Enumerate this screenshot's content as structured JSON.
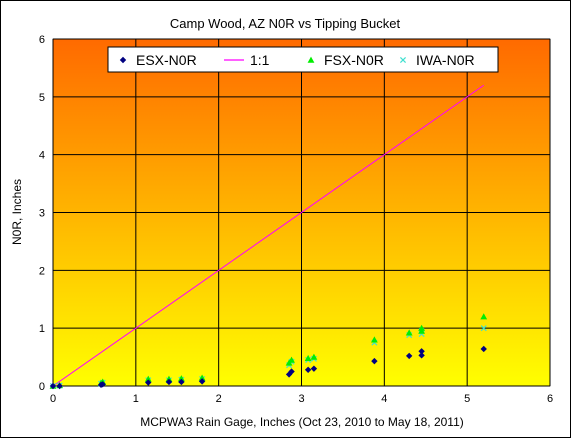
{
  "chart_data": {
    "type": "scatter",
    "title": "Camp Wood, AZ N0R  vs Tipping Bucket",
    "xlabel": "MCPWA3 Rain Gage, Inches (Oct 23, 2010 to May 18, 2011)",
    "ylabel": "N0R, Inches",
    "xlim": [
      0,
      6
    ],
    "ylim": [
      0,
      6
    ],
    "x_ticks": [
      "0",
      "1",
      "2",
      "3",
      "4",
      "5",
      "6"
    ],
    "y_ticks": [
      "0",
      "1",
      "2",
      "3",
      "4",
      "5",
      "6"
    ],
    "grid": true,
    "legend_position": "top-center",
    "background_gradient": [
      "#ff6a00",
      "#ffff00"
    ],
    "series": [
      {
        "name": "ESX-N0R",
        "marker": "diamond",
        "color": "#000080",
        "points": [
          [
            0.0,
            0.0
          ],
          [
            0.08,
            0.0
          ],
          [
            0.58,
            0.02
          ],
          [
            0.6,
            0.03
          ],
          [
            1.15,
            0.06
          ],
          [
            1.4,
            0.07
          ],
          [
            1.55,
            0.07
          ],
          [
            1.8,
            0.08
          ],
          [
            2.85,
            0.2
          ],
          [
            2.88,
            0.25
          ],
          [
            3.08,
            0.28
          ],
          [
            3.15,
            0.3
          ],
          [
            3.88,
            0.43
          ],
          [
            4.3,
            0.52
          ],
          [
            4.45,
            0.53
          ],
          [
            4.45,
            0.6
          ],
          [
            5.2,
            0.64
          ]
        ]
      },
      {
        "name": "1:1",
        "marker": "line",
        "color": "#ff00ff",
        "points": [
          [
            0,
            0
          ],
          [
            5.2,
            5.2
          ]
        ]
      },
      {
        "name": "FSX-N0R",
        "marker": "triangle",
        "color": "#00ee00",
        "points": [
          [
            0.0,
            0.0
          ],
          [
            0.08,
            0.01
          ],
          [
            0.58,
            0.05
          ],
          [
            0.6,
            0.07
          ],
          [
            1.15,
            0.12
          ],
          [
            1.4,
            0.12
          ],
          [
            1.55,
            0.13
          ],
          [
            1.8,
            0.14
          ],
          [
            2.85,
            0.4
          ],
          [
            2.88,
            0.45
          ],
          [
            3.08,
            0.48
          ],
          [
            3.15,
            0.5
          ],
          [
            3.88,
            0.8
          ],
          [
            4.3,
            0.92
          ],
          [
            4.45,
            0.95
          ],
          [
            4.45,
            1.0
          ],
          [
            5.2,
            1.2
          ]
        ]
      },
      {
        "name": "IWA-N0R",
        "marker": "x",
        "color": "#40e0d0",
        "points": [
          [
            0.0,
            0.0
          ],
          [
            0.08,
            0.01
          ],
          [
            0.58,
            0.04
          ],
          [
            0.6,
            0.06
          ],
          [
            1.15,
            0.1
          ],
          [
            1.4,
            0.1
          ],
          [
            1.55,
            0.11
          ],
          [
            1.8,
            0.12
          ],
          [
            2.85,
            0.36
          ],
          [
            2.88,
            0.42
          ],
          [
            3.08,
            0.45
          ],
          [
            3.15,
            0.47
          ],
          [
            3.88,
            0.75
          ],
          [
            4.3,
            0.88
          ],
          [
            4.45,
            0.9
          ],
          [
            4.45,
            0.95
          ],
          [
            5.2,
            1.0
          ]
        ]
      }
    ]
  }
}
